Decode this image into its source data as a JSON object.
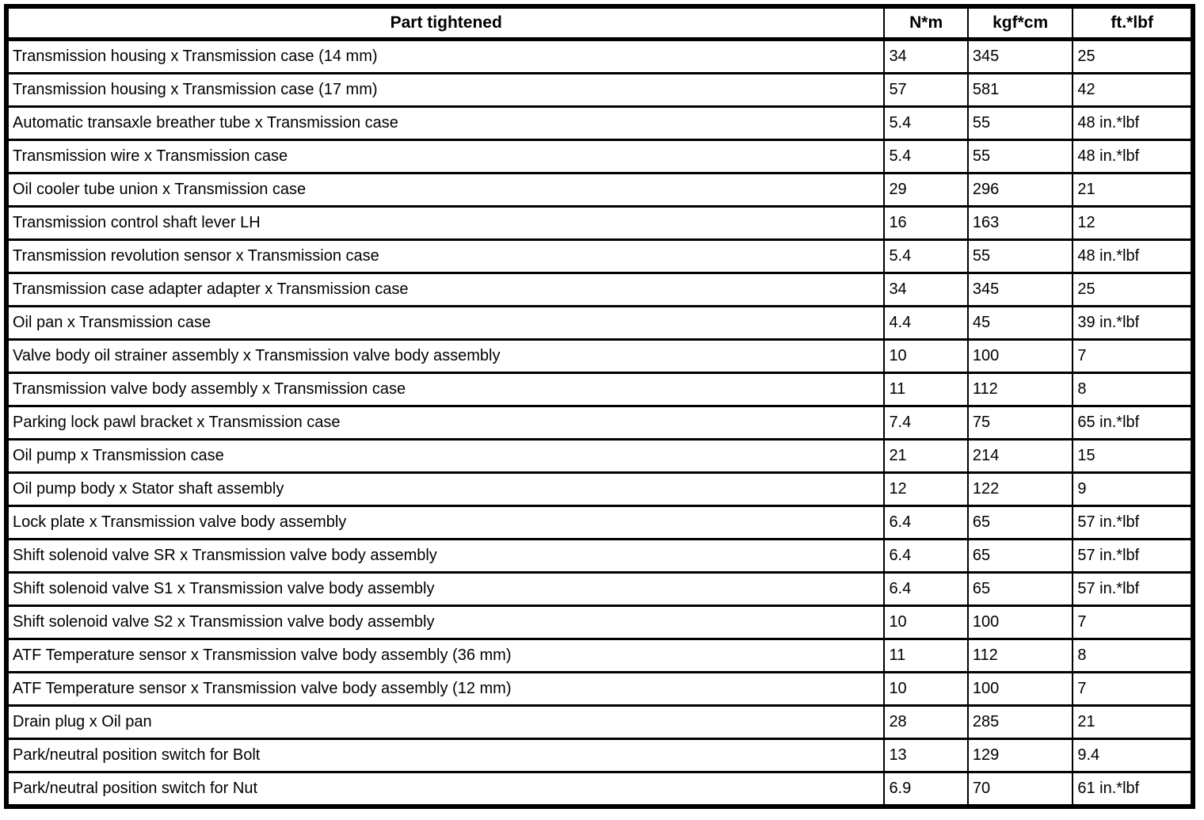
{
  "table": {
    "headers": [
      "Part tightened",
      "N*m",
      "kgf*cm",
      "ft.*lbf"
    ],
    "rows": [
      [
        "Transmission housing x Transmission case (14 mm)",
        "34",
        "345",
        "25"
      ],
      [
        "Transmission housing x Transmission case (17 mm)",
        "57",
        "581",
        "42"
      ],
      [
        "Automatic transaxle breather tube x Transmission case",
        "5.4",
        "55",
        "48 in.*lbf"
      ],
      [
        "Transmission wire x Transmission case",
        "5.4",
        "55",
        "48 in.*lbf"
      ],
      [
        "Oil cooler tube union x Transmission case",
        "29",
        "296",
        "21"
      ],
      [
        "Transmission control shaft lever LH",
        "16",
        "163",
        "12"
      ],
      [
        "Transmission revolution sensor x Transmission case",
        "5.4",
        "55",
        "48 in.*lbf"
      ],
      [
        "Transmission case adapter adapter x Transmission case",
        "34",
        "345",
        "25"
      ],
      [
        "Oil pan x Transmission case",
        "4.4",
        "45",
        "39 in.*lbf"
      ],
      [
        "Valve body oil strainer assembly x Transmission valve body assembly",
        "10",
        "100",
        "7"
      ],
      [
        "Transmission valve body assembly x Transmission case",
        "11",
        "112",
        "8"
      ],
      [
        "Parking lock pawl bracket x Transmission case",
        "7.4",
        "75",
        "65 in.*lbf"
      ],
      [
        "Oil pump x Transmission case",
        "21",
        "214",
        "15"
      ],
      [
        "Oil pump body x Stator shaft assembly",
        "12",
        "122",
        "9"
      ],
      [
        "Lock plate x Transmission valve body assembly",
        "6.4",
        "65",
        "57 in.*lbf"
      ],
      [
        "Shift solenoid valve SR x Transmission valve body assembly",
        "6.4",
        "65",
        "57 in.*lbf"
      ],
      [
        "Shift solenoid valve S1 x Transmission valve body assembly",
        "6.4",
        "65",
        "57 in.*lbf"
      ],
      [
        "Shift solenoid valve S2 x Transmission valve body assembly",
        "10",
        "100",
        "7"
      ],
      [
        "ATF Temperature sensor x Transmission valve body assembly (36 mm)",
        "11",
        "112",
        "8"
      ],
      [
        "ATF Temperature sensor x Transmission valve body assembly (12 mm)",
        "10",
        "100",
        "7"
      ],
      [
        "Drain plug x Oil pan",
        "28",
        "285",
        "21"
      ],
      [
        "Park/neutral position switch for Bolt",
        "13",
        "129",
        "9.4"
      ],
      [
        "Park/neutral position switch for Nut",
        "6.9",
        "70",
        "61 in.*lbf"
      ]
    ]
  }
}
